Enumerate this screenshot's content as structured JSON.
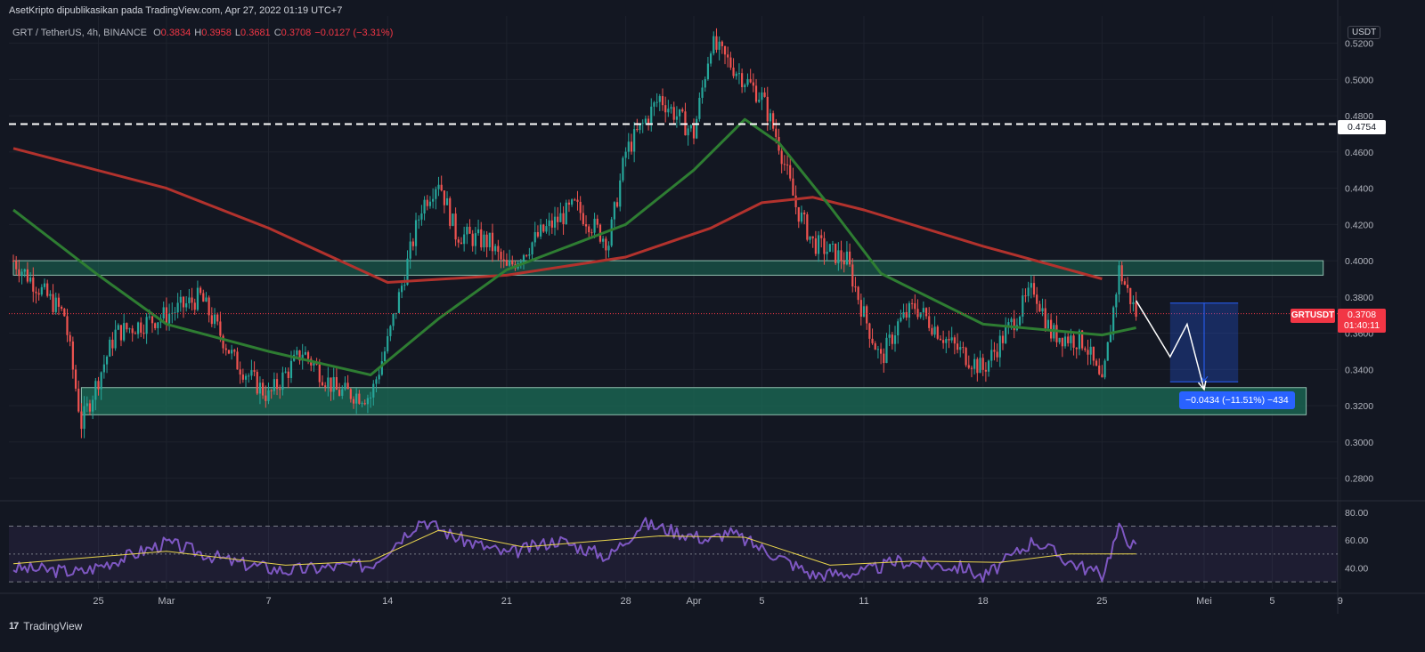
{
  "header": {
    "attribution": "AsetKripto dipublikasikan pada TradingView.com, Apr 27, 2022 01:19 UTC+7",
    "symbol": "GRT / TetherUS, 4h, BINANCE",
    "ohlc": [
      {
        "key": "O",
        "value": "0.3834"
      },
      {
        "key": "H",
        "value": "0.3958"
      },
      {
        "key": "L",
        "value": "0.3681"
      },
      {
        "key": "C",
        "value": "0.3708"
      },
      {
        "key": "",
        "value": "−0.0127 (−3.31%)"
      }
    ],
    "currency": "USDT"
  },
  "price_axis": {
    "ticks": [
      "0.5200",
      "0.5000",
      "0.4800",
      "0.4600",
      "0.4400",
      "0.4200",
      "0.4000",
      "0.3800",
      "0.3600",
      "0.3400",
      "0.3200",
      "0.3000",
      "0.2800"
    ],
    "tick_values": [
      0.52,
      0.5,
      0.48,
      0.46,
      0.44,
      0.42,
      0.4,
      0.38,
      0.36,
      0.34,
      0.32,
      0.3,
      0.28
    ],
    "line_label": "0.4754",
    "line_value": 0.4754,
    "symbol_tag": "GRTUSDT",
    "last_price": "0.3708",
    "countdown": "01:40:11"
  },
  "rsi_axis": {
    "ticks": [
      "80.00",
      "60.00",
      "40.00"
    ],
    "tick_values": [
      80,
      60,
      40
    ]
  },
  "time_axis": {
    "labels": [
      "25",
      "Mar",
      "7",
      "14",
      "21",
      "28",
      "Apr",
      "5",
      "11",
      "18",
      "25",
      "Mei",
      "5",
      "9"
    ]
  },
  "measure": {
    "label": "−0.0434 (−11.51%) −434"
  },
  "footer": {
    "logo_mark": "17",
    "brand": "TradingView"
  },
  "colors": {
    "background": "#131722",
    "up": "#26a69a",
    "down": "#ef5350",
    "ma_long": "#b2322d",
    "ma_short": "#2e7d32",
    "rsi": "#7e57c2",
    "rsi_ma": "#e8d44d",
    "zone": "#1b6e57",
    "measure": "#2962ff"
  },
  "chart_data": {
    "type": "candlestick",
    "title": "GRT / TetherUS, 4h, BINANCE",
    "price_range": [
      0.27,
      0.535
    ],
    "price_path": [
      {
        "date": "Feb 20",
        "price": 0.4
      },
      {
        "date": "Feb 23",
        "price": 0.37
      },
      {
        "date": "Feb 24",
        "price": 0.31
      },
      {
        "date": "Feb 26",
        "price": 0.36
      },
      {
        "date": "Mar 1",
        "price": 0.37
      },
      {
        "date": "Mar 3",
        "price": 0.38
      },
      {
        "date": "Mar 5",
        "price": 0.345
      },
      {
        "date": "Mar 7",
        "price": 0.325
      },
      {
        "date": "Mar 9",
        "price": 0.35
      },
      {
        "date": "Mar 11",
        "price": 0.328
      },
      {
        "date": "Mar 13",
        "price": 0.325
      },
      {
        "date": "Mar 14",
        "price": 0.355
      },
      {
        "date": "Mar 16",
        "price": 0.43
      },
      {
        "date": "Mar 17",
        "price": 0.445
      },
      {
        "date": "Mar 18",
        "price": 0.415
      },
      {
        "date": "Mar 20",
        "price": 0.41
      },
      {
        "date": "Mar 21",
        "price": 0.395
      },
      {
        "date": "Mar 23",
        "price": 0.415
      },
      {
        "date": "Mar 25",
        "price": 0.43
      },
      {
        "date": "Mar 27",
        "price": 0.41
      },
      {
        "date": "Mar 28",
        "price": 0.46
      },
      {
        "date": "Mar 30",
        "price": 0.49
      },
      {
        "date": "Apr 1",
        "price": 0.47
      },
      {
        "date": "Apr 2",
        "price": 0.52
      },
      {
        "date": "Apr 3",
        "price": 0.51
      },
      {
        "date": "Apr 4",
        "price": 0.5
      },
      {
        "date": "Apr 5",
        "price": 0.49
      },
      {
        "date": "Apr 6",
        "price": 0.465
      },
      {
        "date": "Apr 7",
        "price": 0.43
      },
      {
        "date": "Apr 8",
        "price": 0.41
      },
      {
        "date": "Apr 10",
        "price": 0.4
      },
      {
        "date": "Apr 11",
        "price": 0.37
      },
      {
        "date": "Apr 12",
        "price": 0.345
      },
      {
        "date": "Apr 13",
        "price": 0.365
      },
      {
        "date": "Apr 14",
        "price": 0.375
      },
      {
        "date": "Apr 16",
        "price": 0.355
      },
      {
        "date": "Apr 18",
        "price": 0.34
      },
      {
        "date": "Apr 19",
        "price": 0.355
      },
      {
        "date": "Apr 21",
        "price": 0.385
      },
      {
        "date": "Apr 22",
        "price": 0.36
      },
      {
        "date": "Apr 24",
        "price": 0.355
      },
      {
        "date": "Apr 25",
        "price": 0.33
      },
      {
        "date": "Apr 26",
        "price": 0.395
      },
      {
        "date": "Apr 27",
        "price": 0.3708
      }
    ],
    "ma_long": [
      {
        "date": "Feb 20",
        "value": 0.462
      },
      {
        "date": "Mar 1",
        "value": 0.44
      },
      {
        "date": "Mar 7",
        "value": 0.418
      },
      {
        "date": "Mar 14",
        "value": 0.388
      },
      {
        "date": "Mar 21",
        "value": 0.392
      },
      {
        "date": "Mar 28",
        "value": 0.402
      },
      {
        "date": "Apr 2",
        "value": 0.418
      },
      {
        "date": "Apr 5",
        "value": 0.432
      },
      {
        "date": "Apr 8",
        "value": 0.435
      },
      {
        "date": "Apr 11",
        "value": 0.428
      },
      {
        "date": "Apr 18",
        "value": 0.408
      },
      {
        "date": "Apr 25",
        "value": 0.39
      }
    ],
    "ma_short": [
      {
        "date": "Feb 20",
        "value": 0.428
      },
      {
        "date": "Feb 25",
        "value": 0.392
      },
      {
        "date": "Mar 1",
        "value": 0.365
      },
      {
        "date": "Mar 7",
        "value": 0.35
      },
      {
        "date": "Mar 13",
        "value": 0.337
      },
      {
        "date": "Mar 17",
        "value": 0.368
      },
      {
        "date": "Mar 21",
        "value": 0.395
      },
      {
        "date": "Mar 28",
        "value": 0.42
      },
      {
        "date": "Apr 1",
        "value": 0.45
      },
      {
        "date": "Apr 4",
        "value": 0.478
      },
      {
        "date": "Apr 6",
        "value": 0.465
      },
      {
        "date": "Apr 9",
        "value": 0.43
      },
      {
        "date": "Apr 12",
        "value": 0.393
      },
      {
        "date": "Apr 18",
        "value": 0.365
      },
      {
        "date": "Apr 25",
        "value": 0.359
      },
      {
        "date": "Apr 27",
        "value": 0.363
      }
    ],
    "zones": [
      {
        "low": 0.392,
        "high": 0.4,
        "from": "Feb 20",
        "to": "May 8"
      },
      {
        "low": 0.315,
        "high": 0.33,
        "from": "Feb 24",
        "to": "May 7"
      }
    ],
    "projection": [
      {
        "date": "Apr 27",
        "price": 0.378
      },
      {
        "date": "Apr 29",
        "price": 0.347
      },
      {
        "date": "Apr 30",
        "price": 0.365
      },
      {
        "date": "May 1",
        "price": 0.329
      }
    ],
    "measure": {
      "from": 0.3766,
      "to": 0.3332
    },
    "rsi_range": [
      25,
      85
    ],
    "rsi_levels": [
      70,
      50,
      30
    ],
    "rsi": [
      {
        "date": "Feb 20",
        "value": 40
      },
      {
        "date": "Feb 24",
        "value": 37
      },
      {
        "date": "Mar 1",
        "value": 58
      },
      {
        "date": "Mar 5",
        "value": 44
      },
      {
        "date": "Mar 8",
        "value": 38
      },
      {
        "date": "Mar 11",
        "value": 41
      },
      {
        "date": "Mar 13",
        "value": 42
      },
      {
        "date": "Mar 16",
        "value": 75
      },
      {
        "date": "Mar 18",
        "value": 62
      },
      {
        "date": "Mar 21",
        "value": 50
      },
      {
        "date": "Mar 24",
        "value": 60
      },
      {
        "date": "Mar 27",
        "value": 48
      },
      {
        "date": "Mar 29",
        "value": 72
      },
      {
        "date": "Apr 2",
        "value": 60
      },
      {
        "date": "Apr 3",
        "value": 66
      },
      {
        "date": "Apr 6",
        "value": 48
      },
      {
        "date": "Apr 8",
        "value": 35
      },
      {
        "date": "Apr 11",
        "value": 37
      },
      {
        "date": "Apr 13",
        "value": 45
      },
      {
        "date": "Apr 17",
        "value": 40
      },
      {
        "date": "Apr 18",
        "value": 33
      },
      {
        "date": "Apr 21",
        "value": 60
      },
      {
        "date": "Apr 23",
        "value": 45
      },
      {
        "date": "Apr 25",
        "value": 35
      },
      {
        "date": "Apr 26",
        "value": 68
      },
      {
        "date": "Apr 27",
        "value": 54
      }
    ],
    "rsi_ma": [
      {
        "date": "Feb 20",
        "value": 43
      },
      {
        "date": "Mar 1",
        "value": 52
      },
      {
        "date": "Mar 8",
        "value": 42
      },
      {
        "date": "Mar 13",
        "value": 45
      },
      {
        "date": "Mar 17",
        "value": 67
      },
      {
        "date": "Mar 22",
        "value": 55
      },
      {
        "date": "Mar 30",
        "value": 63
      },
      {
        "date": "Apr 4",
        "value": 62
      },
      {
        "date": "Apr 9",
        "value": 42
      },
      {
        "date": "Apr 14",
        "value": 45
      },
      {
        "date": "Apr 19",
        "value": 44
      },
      {
        "date": "Apr 23",
        "value": 50
      },
      {
        "date": "Apr 27",
        "value": 50
      }
    ]
  }
}
